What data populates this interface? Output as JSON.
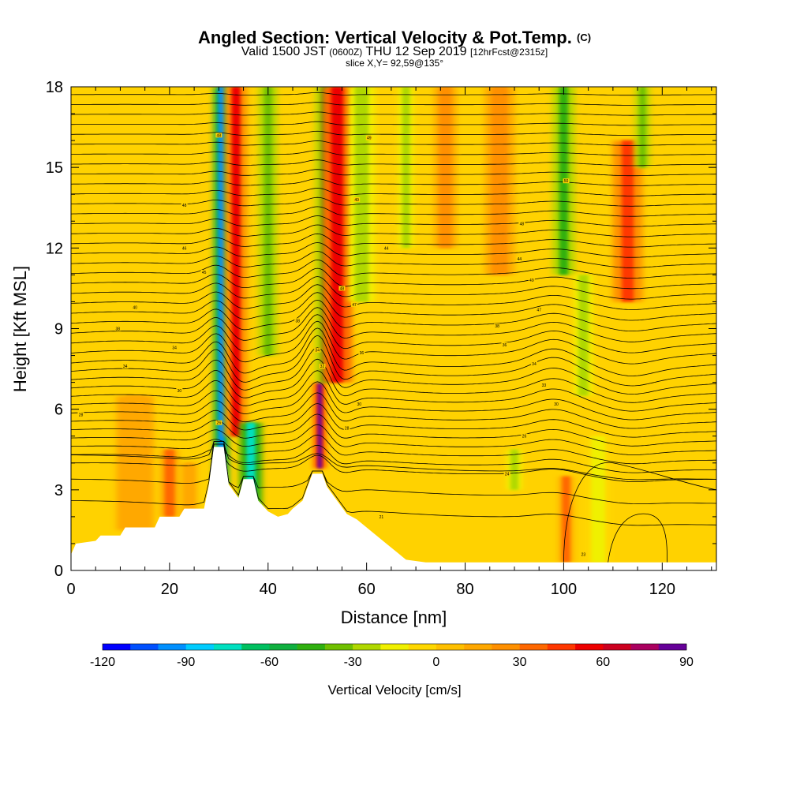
{
  "title": {
    "main": "Angled Section: Vertical Velocity & Pot.Temp.",
    "main_unit": "(C)",
    "line2_a": "Valid 1500 JST",
    "line2_b": "(0600Z)",
    "line2_c": "THU 12 Sep 2019",
    "line2_d": "[12hrFcst@2315z]",
    "line3": "slice X,Y= 92,59@135°"
  },
  "chart_data": {
    "type": "heatmap",
    "xlabel": "Distance [nm]",
    "ylabel": "Height [Kft MSL]",
    "xlim": [
      0,
      131
    ],
    "ylim": [
      0,
      18
    ],
    "x_ticks": [
      0,
      20,
      40,
      60,
      80,
      100,
      120
    ],
    "y_ticks": [
      0,
      3,
      6,
      9,
      12,
      15,
      18
    ],
    "colorbar": {
      "title": "Vertical Velocity [cm/s]",
      "min": -120,
      "max": 90,
      "step": 10,
      "tick_values": [
        -120,
        -90,
        -60,
        -30,
        0,
        30,
        60,
        90
      ],
      "tick_labels": [
        "-120",
        "-90",
        "-60",
        "-30",
        "0",
        "30",
        "60",
        "90"
      ],
      "colors": [
        "#0000ff",
        "#0050ff",
        "#0090ff",
        "#00ccff",
        "#00e0c0",
        "#00c060",
        "#10b040",
        "#30b010",
        "#70c000",
        "#b0d800",
        "#f0f000",
        "#ffd800",
        "#ffc000",
        "#ffa800",
        "#ff9000",
        "#ff6800",
        "#ff3800",
        "#ee0000",
        "#cc0020",
        "#aa0060",
        "#660099"
      ]
    },
    "terrain_profile": [
      [
        0,
        0.6
      ],
      [
        1,
        1.0
      ],
      [
        5,
        1.1
      ],
      [
        6,
        1.3
      ],
      [
        10,
        1.3
      ],
      [
        11,
        1.6
      ],
      [
        17,
        1.6
      ],
      [
        18,
        2.0
      ],
      [
        22,
        2.0
      ],
      [
        23,
        2.3
      ],
      [
        27,
        2.3
      ],
      [
        28,
        3.2
      ],
      [
        29,
        4.6
      ],
      [
        31,
        4.6
      ],
      [
        32,
        3.2
      ],
      [
        34,
        2.7
      ],
      [
        35,
        3.4
      ],
      [
        37,
        3.4
      ],
      [
        38,
        2.6
      ],
      [
        40,
        2.2
      ],
      [
        42,
        2.0
      ],
      [
        44,
        2.1
      ],
      [
        45,
        2.3
      ],
      [
        47,
        2.6
      ],
      [
        48,
        3.1
      ],
      [
        49,
        3.6
      ],
      [
        51,
        3.6
      ],
      [
        52,
        3.1
      ],
      [
        54,
        2.6
      ],
      [
        56,
        2.1
      ],
      [
        58,
        1.9
      ],
      [
        60,
        1.6
      ],
      [
        62,
        1.3
      ],
      [
        64,
        1.0
      ],
      [
        66,
        0.7
      ],
      [
        68,
        0.4
      ],
      [
        72,
        0.3
      ],
      [
        131,
        0.3
      ]
    ],
    "vertical_velocity_features": [
      {
        "x": 30.5,
        "z_bottom": 3.2,
        "z_top": 18,
        "width": 2.0,
        "value": -100
      },
      {
        "x": 33.5,
        "z_bottom": 5.0,
        "z_top": 18,
        "width": 3.0,
        "value": 50
      },
      {
        "x": 36.5,
        "z_bottom": 2.2,
        "z_top": 5.5,
        "width": 3.0,
        "value": -80
      },
      {
        "x": 40.0,
        "z_bottom": 8.0,
        "z_top": 18,
        "width": 2.5,
        "value": -40
      },
      {
        "x": 50.5,
        "z_bottom": 3.8,
        "z_top": 7.0,
        "width": 1.5,
        "value": 80
      },
      {
        "x": 51.5,
        "z_bottom": 7.0,
        "z_top": 18,
        "width": 2.5,
        "value": -50
      },
      {
        "x": 54.0,
        "z_bottom": 7.0,
        "z_top": 18,
        "width": 4.0,
        "value": 55
      },
      {
        "x": 59.0,
        "z_bottom": 10.0,
        "z_top": 18,
        "width": 3.5,
        "value": -25
      },
      {
        "x": 68.0,
        "z_bottom": 12.0,
        "z_top": 18,
        "width": 2.0,
        "value": -25
      },
      {
        "x": 76.0,
        "z_bottom": 12.0,
        "z_top": 18,
        "width": 3.0,
        "value": 25
      },
      {
        "x": 87.0,
        "z_bottom": 11.0,
        "z_top": 18,
        "width": 4.0,
        "value": 25
      },
      {
        "x": 90.0,
        "z_bottom": 3.0,
        "z_top": 4.5,
        "width": 2.0,
        "value": -30
      },
      {
        "x": 100.0,
        "z_bottom": 11.0,
        "z_top": 18,
        "width": 3.0,
        "value": -50
      },
      {
        "x": 100.5,
        "z_bottom": 0.3,
        "z_top": 3.5,
        "width": 2.0,
        "value": 35
      },
      {
        "x": 104.0,
        "z_bottom": 6.5,
        "z_top": 11.0,
        "width": 2.5,
        "value": -25
      },
      {
        "x": 107.0,
        "z_bottom": 0.3,
        "z_top": 5.0,
        "width": 3.5,
        "value": -15
      },
      {
        "x": 113.0,
        "z_bottom": 10.0,
        "z_top": 16.0,
        "width": 4.0,
        "value": 40
      },
      {
        "x": 116.0,
        "z_bottom": 15.0,
        "z_top": 18,
        "width": 2.0,
        "value": -40
      },
      {
        "x": 20.0,
        "z_bottom": 2.0,
        "z_top": 4.5,
        "width": 2.5,
        "value": 30
      },
      {
        "x": 24.0,
        "z_bottom": 2.0,
        "z_top": 4.0,
        "width": 2.0,
        "value": 15
      },
      {
        "x": 13.0,
        "z_bottom": 1.5,
        "z_top": 6.5,
        "width": 5.0,
        "value": 10
      }
    ],
    "isentrope_labels": [
      {
        "x": 30,
        "z": 16.2,
        "label": "48"
      },
      {
        "x": 60.5,
        "z": 16.1,
        "label": "49"
      },
      {
        "x": 100.5,
        "z": 14.5,
        "label": "50"
      },
      {
        "x": 23,
        "z": 13.6,
        "label": "48"
      },
      {
        "x": 58,
        "z": 13.8,
        "label": "49"
      },
      {
        "x": 91.5,
        "z": 12.9,
        "label": "48"
      },
      {
        "x": 23,
        "z": 12.0,
        "label": "46"
      },
      {
        "x": 64,
        "z": 12.0,
        "label": "44"
      },
      {
        "x": 91,
        "z": 11.6,
        "label": "44"
      },
      {
        "x": 27,
        "z": 11.1,
        "label": "45"
      },
      {
        "x": 93.5,
        "z": 10.8,
        "label": "49"
      },
      {
        "x": 55,
        "z": 10.5,
        "label": "48"
      },
      {
        "x": 57.5,
        "z": 9.9,
        "label": "47"
      },
      {
        "x": 13,
        "z": 9.8,
        "label": "40"
      },
      {
        "x": 95,
        "z": 9.7,
        "label": "47"
      },
      {
        "x": 9.5,
        "z": 9.0,
        "label": "38"
      },
      {
        "x": 46,
        "z": 9.3,
        "label": "38"
      },
      {
        "x": 86.5,
        "z": 9.1,
        "label": "38"
      },
      {
        "x": 21,
        "z": 8.3,
        "label": "34"
      },
      {
        "x": 50,
        "z": 8.2,
        "label": "34"
      },
      {
        "x": 59,
        "z": 8.1,
        "label": "36"
      },
      {
        "x": 88,
        "z": 8.4,
        "label": "36"
      },
      {
        "x": 11,
        "z": 7.6,
        "label": "34"
      },
      {
        "x": 51,
        "z": 7.6,
        "label": "32"
      },
      {
        "x": 94,
        "z": 7.7,
        "label": "34"
      },
      {
        "x": 22,
        "z": 6.7,
        "label": "30"
      },
      {
        "x": 96,
        "z": 6.9,
        "label": "33"
      },
      {
        "x": 2,
        "z": 5.8,
        "label": "28"
      },
      {
        "x": 58.5,
        "z": 6.2,
        "label": "30"
      },
      {
        "x": 98.5,
        "z": 6.2,
        "label": "30"
      },
      {
        "x": 30,
        "z": 5.5,
        "label": "26"
      },
      {
        "x": 56,
        "z": 5.3,
        "label": "28"
      },
      {
        "x": 92,
        "z": 5.0,
        "label": "26"
      },
      {
        "x": 88.5,
        "z": 3.6,
        "label": "24"
      },
      {
        "x": 63,
        "z": 2.0,
        "label": "21"
      },
      {
        "x": 104,
        "z": 0.6,
        "label": "23"
      }
    ]
  }
}
